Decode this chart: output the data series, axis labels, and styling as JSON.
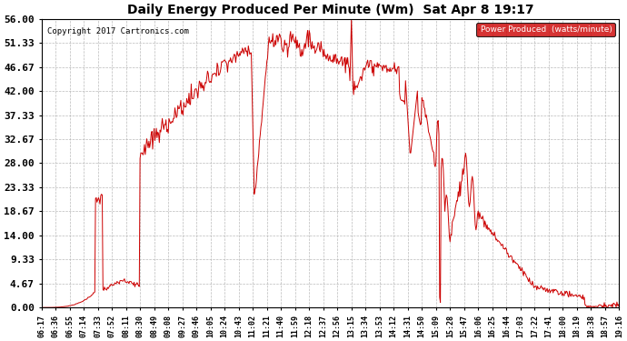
{
  "title": "Daily Energy Produced Per Minute (Wm)  Sat Apr 8 19:17",
  "copyright": "Copyright 2017 Cartronics.com",
  "legend_label": "Power Produced  (watts/minute)",
  "legend_color": "#cc0000",
  "line_color": "#cc0000",
  "background_color": "#ffffff",
  "grid_color": "#aaaaaa",
  "ymax": 56.0,
  "ymin": 0.0,
  "yticks": [
    0.0,
    4.67,
    9.33,
    14.0,
    18.67,
    23.33,
    28.0,
    32.67,
    37.33,
    42.0,
    46.67,
    51.33,
    56.0
  ],
  "ytick_labels": [
    "0.00",
    "4.67",
    "9.33",
    "14.00",
    "18.67",
    "23.33",
    "28.00",
    "32.67",
    "37.33",
    "42.00",
    "46.67",
    "51.33",
    "56.00"
  ],
  "xtick_labels": [
    "06:17",
    "06:36",
    "06:55",
    "07:14",
    "07:33",
    "07:52",
    "08:11",
    "08:30",
    "08:49",
    "09:08",
    "09:27",
    "09:46",
    "10:05",
    "10:24",
    "10:43",
    "11:02",
    "11:21",
    "11:40",
    "11:59",
    "12:18",
    "12:37",
    "12:56",
    "13:15",
    "13:34",
    "13:53",
    "14:12",
    "14:31",
    "14:50",
    "15:09",
    "15:28",
    "15:47",
    "16:06",
    "16:25",
    "16:44",
    "17:03",
    "17:22",
    "17:41",
    "18:00",
    "18:19",
    "18:38",
    "18:57",
    "19:16"
  ],
  "figsize": [
    6.9,
    3.75
  ],
  "dpi": 100
}
